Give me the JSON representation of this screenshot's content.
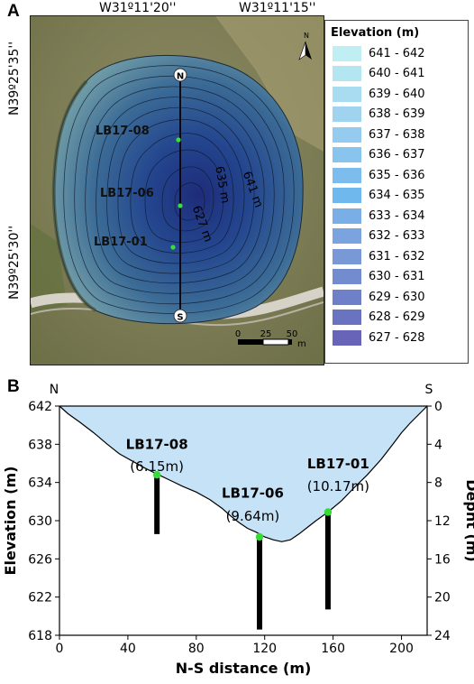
{
  "panel_a": {
    "letter": "A",
    "coords": {
      "top_left": "W31º11'20''",
      "top_right": "W31º11'15''",
      "left_top": "N39º25'35''",
      "left_bottom": "N39º25'30''"
    },
    "compass": "N",
    "transect": {
      "north_label": "N",
      "south_label": "S"
    },
    "boreholes": [
      "LB17-08",
      "LB17-06",
      "LB17-01"
    ],
    "contour_labels": [
      "641 m",
      "635 m",
      "627 m"
    ],
    "scalebar": {
      "ticks": [
        "0",
        "25",
        "50"
      ],
      "unit": "m"
    },
    "legend": {
      "title": "Elevation (m)",
      "items": [
        {
          "label": "641 - 642",
          "color": "#bfeff2"
        },
        {
          "label": "640 - 641",
          "color": "#b4e6f1"
        },
        {
          "label": "639 - 640",
          "color": "#a9dcf0"
        },
        {
          "label": "638 - 639",
          "color": "#a0d3ef"
        },
        {
          "label": "637 - 638",
          "color": "#95cbef"
        },
        {
          "label": "636 - 637",
          "color": "#88c4ee"
        },
        {
          "label": "635 - 636",
          "color": "#7cbded"
        },
        {
          "label": "634 - 635",
          "color": "#6eb8ed"
        },
        {
          "label": "633 - 634",
          "color": "#79aee6"
        },
        {
          "label": "632 - 633",
          "color": "#7ba3df"
        },
        {
          "label": "631 - 632",
          "color": "#7898d6"
        },
        {
          "label": "630 - 631",
          "color": "#728ccf"
        },
        {
          "label": "629 - 630",
          "color": "#6e80c8"
        },
        {
          "label": "628 - 629",
          "color": "#6a73c0"
        },
        {
          "label": "627 - 628",
          "color": "#6865b8"
        }
      ]
    }
  },
  "panel_b": {
    "letter": "B",
    "corner_left": "N",
    "corner_right": "S",
    "chart_data": {
      "type": "area",
      "xlabel": "N-S distance (m)",
      "ylabel": "Elevation (m)",
      "y2label": "Depht (m)",
      "xlim": [
        0,
        215
      ],
      "ylim": [
        618,
        642
      ],
      "y2lim": [
        0,
        24
      ],
      "xticks": [
        0,
        40,
        80,
        120,
        160,
        200
      ],
      "yticks": [
        618,
        622,
        626,
        630,
        634,
        638,
        642
      ],
      "y2ticks": [
        0,
        4,
        8,
        12,
        16,
        20,
        24
      ],
      "profile": {
        "x": [
          0,
          5,
          12,
          20,
          28,
          35,
          42,
          50,
          58,
          65,
          72,
          80,
          88,
          95,
          100,
          105,
          110,
          115,
          120,
          125,
          130,
          135,
          140,
          145,
          150,
          157,
          165,
          172,
          180,
          188,
          195,
          200,
          205,
          210,
          215
        ],
        "y": [
          642,
          641.2,
          640.3,
          639.2,
          638,
          637,
          636.3,
          635.5,
          634.8,
          634.2,
          633.6,
          633,
          632.2,
          631.3,
          630.5,
          629.8,
          629.2,
          628.8,
          628.3,
          628,
          627.8,
          628,
          628.6,
          629.3,
          630,
          630.9,
          632.1,
          633.4,
          634.8,
          636.4,
          638,
          639.2,
          640.2,
          641.1,
          642
        ]
      },
      "cores": [
        {
          "name": "LB17-08",
          "depth_label": "(6.15m)",
          "x": 57,
          "top": 634.8,
          "bottom": 628.6
        },
        {
          "name": "LB17-06",
          "depth_label": "(9.64m)",
          "x": 117,
          "top": 628.3,
          "bottom": 618.6
        },
        {
          "name": "LB17-01",
          "depth_label": "(10.17m)",
          "x": 157,
          "top": 630.9,
          "bottom": 620.7
        }
      ],
      "fill_color": "#c6e2f7",
      "core_top_color": "#33dd33"
    }
  }
}
